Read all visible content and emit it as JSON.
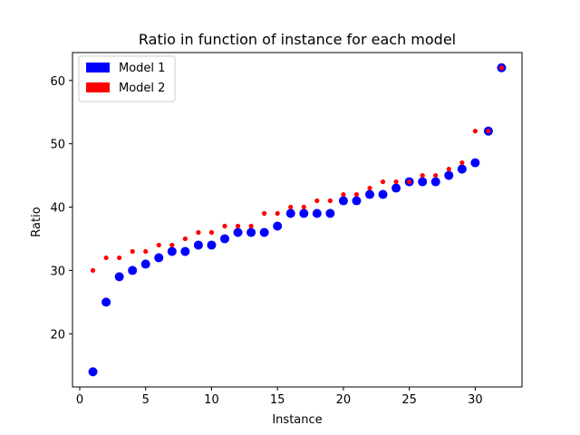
{
  "chart_data": {
    "type": "scatter",
    "title": "Ratio in function of instance for each model",
    "xlabel": "Instance",
    "ylabel": "Ratio",
    "xlim": [
      -0.55,
      33.55
    ],
    "ylim": [
      11.6,
      64.4
    ],
    "xticks": [
      0,
      5,
      10,
      15,
      20,
      25,
      30
    ],
    "yticks": [
      20,
      30,
      40,
      50,
      60
    ],
    "grid": false,
    "legend": {
      "placement": "top-left"
    },
    "series": [
      {
        "name": "Model 1",
        "color": "#0000ff",
        "marker": "large",
        "x": [
          1,
          2,
          3,
          4,
          5,
          6,
          7,
          8,
          9,
          10,
          11,
          12,
          13,
          14,
          15,
          16,
          17,
          18,
          19,
          20,
          21,
          22,
          23,
          24,
          25,
          26,
          27,
          28,
          29,
          30,
          31,
          32
        ],
        "y": [
          14,
          25,
          29,
          30,
          31,
          32,
          33,
          33,
          34,
          34,
          35,
          36,
          36,
          36,
          37,
          39,
          39,
          39,
          39,
          41,
          41,
          42,
          42,
          43,
          44,
          44,
          44,
          45,
          46,
          47,
          52,
          62
        ]
      },
      {
        "name": "Model 2",
        "color": "#ff0000",
        "marker": "small",
        "x": [
          1,
          2,
          3,
          4,
          5,
          6,
          7,
          8,
          9,
          10,
          11,
          12,
          13,
          14,
          15,
          16,
          17,
          18,
          19,
          20,
          21,
          22,
          23,
          24,
          25,
          26,
          27,
          28,
          29,
          30,
          31,
          32
        ],
        "y": [
          30,
          32,
          32,
          33,
          33,
          34,
          34,
          35,
          36,
          36,
          37,
          37,
          37,
          39,
          39,
          40,
          40,
          41,
          41,
          42,
          42,
          43,
          44,
          44,
          44,
          45,
          45,
          46,
          47,
          52,
          52,
          62
        ]
      }
    ]
  }
}
